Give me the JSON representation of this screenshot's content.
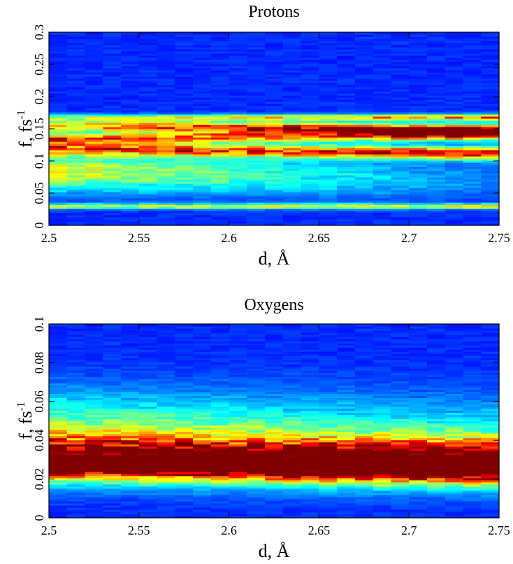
{
  "chart_data": [
    {
      "type": "heatmap",
      "title": "Protons",
      "xlabel": "d, Å",
      "ylabel": "f, fs",
      "ylabel_sup": "-1",
      "xlim": [
        2.5,
        2.75
      ],
      "ylim": [
        0,
        0.3
      ],
      "xticks": [
        2.5,
        2.55,
        2.6,
        2.65,
        2.7,
        2.75
      ],
      "xtick_labels": [
        "2.5",
        "2.55",
        "2.6",
        "2.65",
        "2.7",
        "2.75"
      ],
      "yticks": [
        0,
        0.05,
        0.1,
        0.15,
        0.2,
        0.25,
        0.3
      ],
      "ytick_labels": [
        "0",
        "0.05",
        "0.1",
        "0.15",
        "0.2",
        "0.25",
        "0.3"
      ],
      "colormap": "jet",
      "x_columns": 25,
      "bands": [
        {
          "f_start": 0.155,
          "f_end": 0.148,
          "width": 0.009,
          "i_start": 0.55,
          "i_end": 0.95
        },
        {
          "f_start": 0.135,
          "f_end": 0.14,
          "width": 0.008,
          "i_start": 0.6,
          "i_end": 0.55
        },
        {
          "f_start": 0.12,
          "f_end": 0.112,
          "width": 0.01,
          "i_start": 0.55,
          "i_end": 0.75
        },
        {
          "f_start": 0.085,
          "f_end": 0.07,
          "width": 0.03,
          "i_start": 0.45,
          "i_end": 0.08
        },
        {
          "f_start": 0.03,
          "f_end": 0.03,
          "width": 0.004,
          "i_start": 0.42,
          "i_end": 0.45
        },
        {
          "f_start": 0.168,
          "f_end": 0.168,
          "width": 0.005,
          "i_start": 0.35,
          "i_end": 0.6
        }
      ]
    },
    {
      "type": "heatmap",
      "title": "Oxygens",
      "xlabel": "d, Å",
      "ylabel": "f, fs",
      "ylabel_sup": "-1",
      "xlim": [
        2.5,
        2.75
      ],
      "ylim": [
        0,
        0.1
      ],
      "xticks": [
        2.5,
        2.55,
        2.6,
        2.65,
        2.7,
        2.75
      ],
      "xtick_labels": [
        "2.5",
        "2.55",
        "2.6",
        "2.65",
        "2.7",
        "2.75"
      ],
      "yticks": [
        0,
        0.02,
        0.04,
        0.06,
        0.08,
        0.1
      ],
      "ytick_labels": [
        "0",
        "0.02",
        "0.04",
        "0.06",
        "0.08",
        "0.1"
      ],
      "colormap": "jet",
      "x_columns": 25,
      "bands": [
        {
          "f_start": 0.031,
          "f_end": 0.029,
          "width": 0.011,
          "i_start": 0.7,
          "i_end": 0.97
        },
        {
          "f_start": 0.026,
          "f_end": 0.024,
          "width": 0.005,
          "i_start": 0.35,
          "i_end": 0.3
        },
        {
          "f_start": 0.045,
          "f_end": 0.042,
          "width": 0.02,
          "i_start": 0.35,
          "i_end": 0.2
        }
      ]
    }
  ]
}
